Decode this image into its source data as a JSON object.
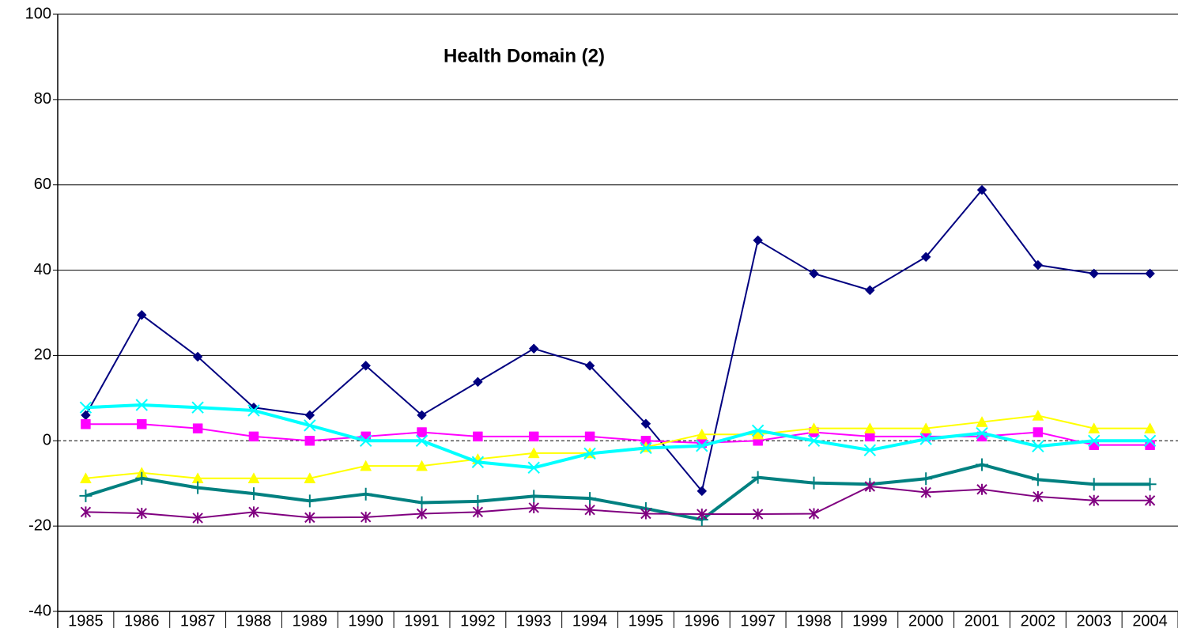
{
  "chart_data": {
    "type": "line",
    "title": "Health Domain (2)",
    "categories": [
      "1985",
      "1986",
      "1987",
      "1988",
      "1989",
      "1990",
      "1991",
      "1992",
      "1993",
      "1994",
      "1995",
      "1996",
      "1997",
      "1998",
      "1999",
      "2000",
      "2001",
      "2002",
      "2003",
      "2004"
    ],
    "ylim": [
      -40,
      100
    ],
    "yticks": [
      -40,
      -20,
      0,
      20,
      40,
      60,
      80,
      100
    ],
    "grid": true,
    "series": [
      {
        "color": "#000080",
        "marker": "diamond",
        "line_width": 2,
        "values": [
          6,
          29.5,
          19.7,
          7.8,
          6,
          17.6,
          6,
          13.8,
          21.6,
          17.6,
          4,
          -11.8,
          47,
          39.2,
          35.3,
          43.1,
          58.8,
          41.2,
          39.2,
          39.2
        ]
      },
      {
        "color": "#ff00ff",
        "marker": "square",
        "line_width": 2,
        "values": [
          3.9,
          3.9,
          2.9,
          1,
          0,
          1,
          2,
          1,
          1,
          1,
          0,
          -0.5,
          0,
          2,
          1,
          1,
          1,
          2,
          -1,
          -1
        ]
      },
      {
        "color": "#ffff00",
        "marker": "triangle",
        "line_width": 2,
        "values": [
          -8.8,
          -7.5,
          -8.8,
          -8.8,
          -8.8,
          -5.9,
          -5.9,
          -4.3,
          -2.9,
          -2.9,
          -1.5,
          1.5,
          1.5,
          2.9,
          2.9,
          2.9,
          4.4,
          5.9,
          2.9,
          2.9
        ]
      },
      {
        "color": "#00ffff",
        "marker": "x",
        "line_width": 4,
        "values": [
          7.8,
          8.4,
          7.8,
          7.1,
          3.6,
          0,
          0,
          -5,
          -6.3,
          -3,
          -1.7,
          -1.2,
          2.4,
          0,
          -2.2,
          0.4,
          1.8,
          -1.3,
          0,
          0
        ]
      },
      {
        "color": "#008080",
        "marker": "plus",
        "line_width": 4,
        "values": [
          -12.9,
          -8.8,
          -11,
          -12.4,
          -14.1,
          -12.5,
          -14.5,
          -14.2,
          -13,
          -13.5,
          -15.9,
          -18.5,
          -8.6,
          -9.9,
          -10.2,
          -8.9,
          -5.6,
          -9.1,
          -10.2,
          -10.2
        ]
      },
      {
        "color": "#800080",
        "marker": "asterisk",
        "line_width": 2,
        "values": [
          -16.7,
          -17,
          -18.1,
          -16.7,
          -18,
          -17.9,
          -17.1,
          -16.7,
          -15.7,
          -16.2,
          -17.1,
          -17.2,
          -17.2,
          -17.1,
          -10.7,
          -12.1,
          -11.4,
          -13.1,
          -14,
          -14
        ]
      }
    ]
  }
}
